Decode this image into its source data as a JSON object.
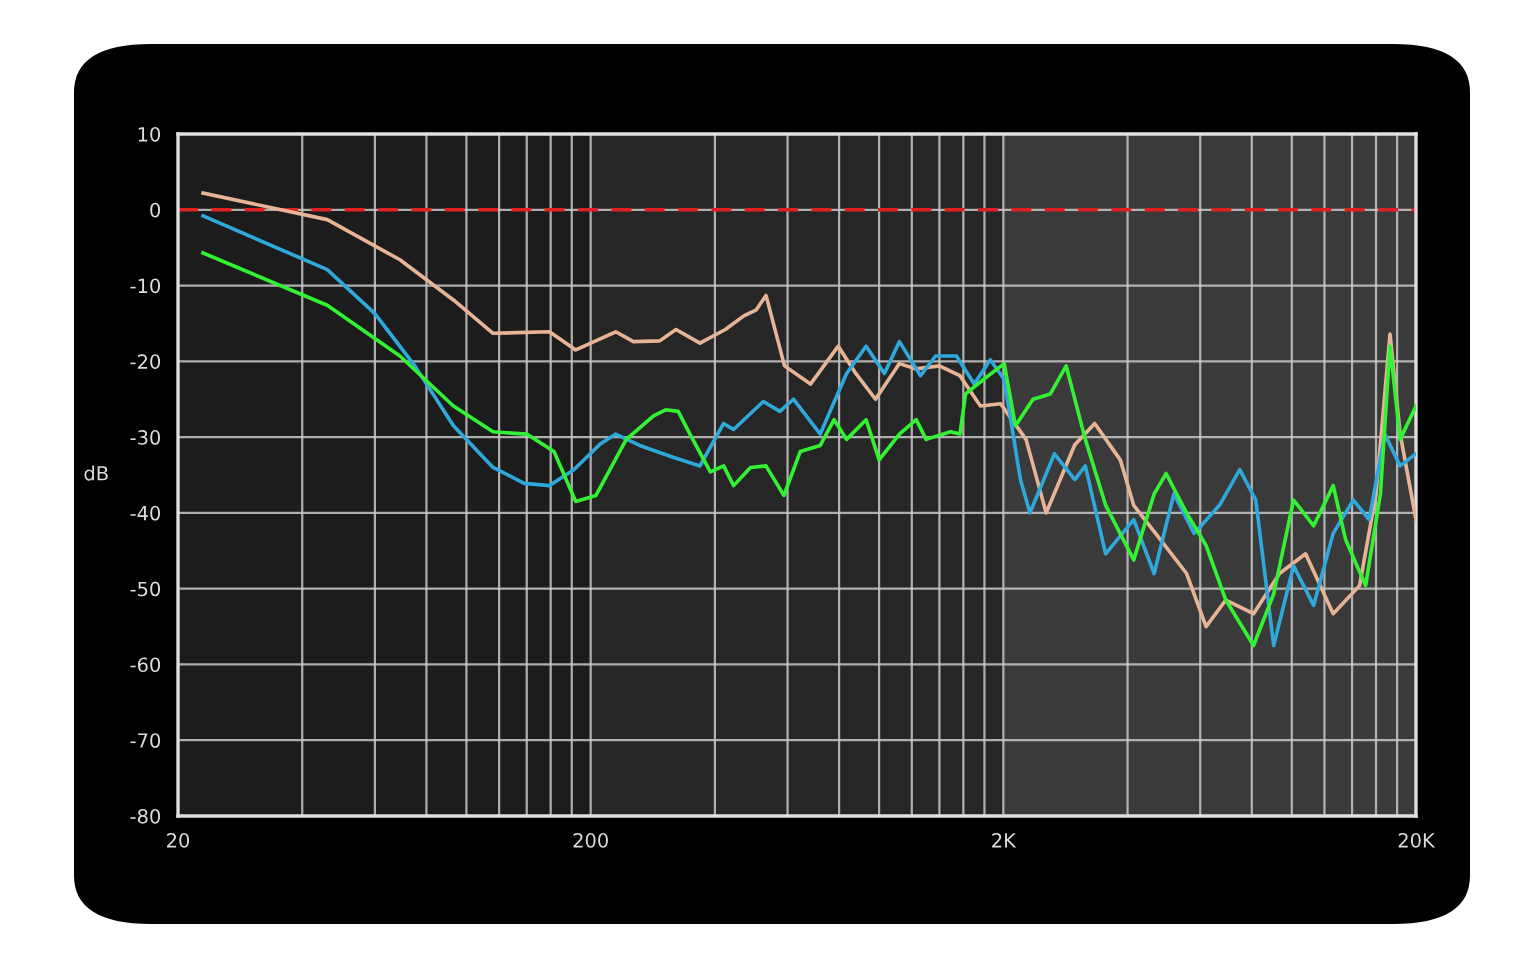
{
  "chart_data": {
    "type": "line",
    "ylabel": "dB",
    "log": "x",
    "grid": true,
    "line_style": "solid",
    "marker": "none",
    "xlim": [
      20,
      20000
    ],
    "ylim": [
      -80,
      10
    ],
    "xticks": [
      20,
      {
        "value": 40,
        "label": null
      },
      {
        "value": 60,
        "label": null
      },
      {
        "value": 80,
        "label": null
      },
      {
        "value": 100,
        "label": null
      },
      {
        "value": 120,
        "label": null
      },
      {
        "value": 140,
        "label": null
      },
      {
        "value": 160,
        "label": null
      },
      {
        "value": 180,
        "label": null
      },
      200,
      {
        "value": 400,
        "label": null
      },
      {
        "value": 600,
        "label": null
      },
      {
        "value": 800,
        "label": null
      },
      {
        "value": 1000,
        "label": null
      },
      {
        "value": 1200,
        "label": null
      },
      {
        "value": 1400,
        "label": null
      },
      {
        "value": 1600,
        "label": null
      },
      {
        "value": 1800,
        "label": null
      },
      {
        "value": 2000,
        "label": "2K"
      },
      {
        "value": 4000,
        "label": null
      },
      {
        "value": 6000,
        "label": null
      },
      {
        "value": 8000,
        "label": null
      },
      {
        "value": 10000,
        "label": null
      },
      {
        "value": 12000,
        "label": null
      },
      {
        "value": 14000,
        "label": null
      },
      {
        "value": 16000,
        "label": null
      },
      {
        "value": 18000,
        "label": null
      },
      {
        "value": 20000,
        "label": "20K"
      }
    ],
    "yticks": [
      10,
      0,
      -10,
      -20,
      -30,
      -40,
      -50,
      -60,
      -70,
      -80
    ],
    "bands": [
      {
        "axis": "x",
        "from": 200,
        "to": 2000,
        "color": "#262626"
      },
      {
        "axis": "x",
        "from": 2000,
        "to": 20000,
        "color": "#3a3a3a"
      }
    ],
    "ref_lines": [
      {
        "axis": "y",
        "value": 0,
        "color": "#e02020",
        "line_style": "dashed"
      }
    ],
    "series": [
      {
        "color": "#e8b496",
        "x": [
          23,
          46,
          69,
          93,
          116,
          159,
          184,
          230,
          254,
          294,
          322,
          368,
          424,
          470,
          504,
          532,
          590,
          682,
          796,
          878,
          980,
          1120,
          1230,
          1400,
          1570,
          1760,
          1970,
          2270,
          2540,
          2980,
          3330,
          3840,
          4140,
          4800,
          5560,
          6200,
          6920,
          8080,
          9340,
          10800,
          12600,
          14600,
          16000,
          17300,
          18300,
          20000
        ],
        "values": [
          2.2,
          -1.3,
          -6.6,
          -11.9,
          -16.3,
          -16.1,
          -18.5,
          -16.1,
          -17.4,
          -17.3,
          -15.8,
          -17.6,
          -15.8,
          -14,
          -13.2,
          -11.3,
          -20.6,
          -23,
          -18,
          -21.6,
          -25,
          -20.3,
          -21,
          -20.6,
          -21.9,
          -25.9,
          -25.6,
          -30.3,
          -40,
          -31,
          -28.2,
          -33,
          -39,
          -43.5,
          -48,
          -55,
          -51.5,
          -53.3,
          -48,
          -45.4,
          -53.3,
          -49.6,
          -37.5,
          -16.4,
          -29.5,
          -40.9
        ]
      },
      {
        "color": "#2fa8dc",
        "x": [
          23,
          46,
          60,
          75,
          93,
          116,
          138,
          159,
          182,
          211,
          230,
          263,
          318,
          368,
          420,
          444,
          524,
          575,
          620,
          720,
          834,
          930,
          1030,
          1120,
          1260,
          1370,
          1540,
          1700,
          1860,
          2010,
          2200,
          2320,
          2660,
          2980,
          3160,
          3540,
          4140,
          4640,
          5180,
          5800,
          6680,
          7480,
          8180,
          9040,
          10100,
          11300,
          12600,
          14100,
          15400,
          16800,
          18300,
          20000
        ],
        "values": [
          -0.8,
          -7.9,
          -13.7,
          -20.6,
          -28.5,
          -34,
          -36.1,
          -36.4,
          -34.3,
          -30.9,
          -29.6,
          -31.1,
          -32.7,
          -33.8,
          -28.2,
          -29,
          -25.3,
          -26.6,
          -25,
          -29.6,
          -21.6,
          -18,
          -21.6,
          -17.4,
          -21.9,
          -19.3,
          -19.3,
          -23,
          -19.8,
          -22.4,
          -35.6,
          -40,
          -32.2,
          -35.6,
          -33.8,
          -45.4,
          -40.9,
          -48,
          -37.5,
          -42.7,
          -39,
          -34.3,
          -38.3,
          -57.5,
          -47,
          -52.2,
          -42.7,
          -38.3,
          -40.9,
          -29.6,
          -33.8,
          -32.2
        ]
      },
      {
        "color": "#33f233",
        "x": [
          23,
          46,
          69,
          93,
          116,
          140,
          163,
          184,
          206,
          244,
          284,
          304,
          326,
          348,
          390,
          420,
          444,
          488,
          532,
          588,
          644,
          720,
          778,
          834,
          930,
          1000,
          1120,
          1230,
          1300,
          1490,
          1570,
          1620,
          1790,
          2010,
          2140,
          2360,
          2600,
          2840,
          3160,
          3540,
          4140,
          4640,
          4960,
          5560,
          6200,
          6920,
          8080,
          9040,
          10100,
          11300,
          12600,
          13500,
          15100,
          16400,
          17300,
          18300,
          20000
        ],
        "values": [
          -5.7,
          -12.6,
          -19.3,
          -25.9,
          -29.3,
          -29.6,
          -31.9,
          -38.5,
          -37.7,
          -30.3,
          -27.2,
          -26.4,
          -26.6,
          -29.6,
          -34.6,
          -33.8,
          -36.4,
          -34,
          -33.8,
          -37.7,
          -31.9,
          -31.1,
          -27.7,
          -30.3,
          -27.7,
          -33,
          -29.6,
          -27.7,
          -30.3,
          -29.3,
          -29.6,
          -24.3,
          -22.4,
          -20.3,
          -28.5,
          -25,
          -24.3,
          -20.6,
          -30.3,
          -39,
          -46.2,
          -37.5,
          -34.8,
          -40,
          -44.3,
          -51.5,
          -57.5,
          -50.7,
          -38.3,
          -41.7,
          -36.4,
          -43.5,
          -49.6,
          -37.5,
          -18,
          -30.3,
          -25.9
        ]
      }
    ]
  }
}
